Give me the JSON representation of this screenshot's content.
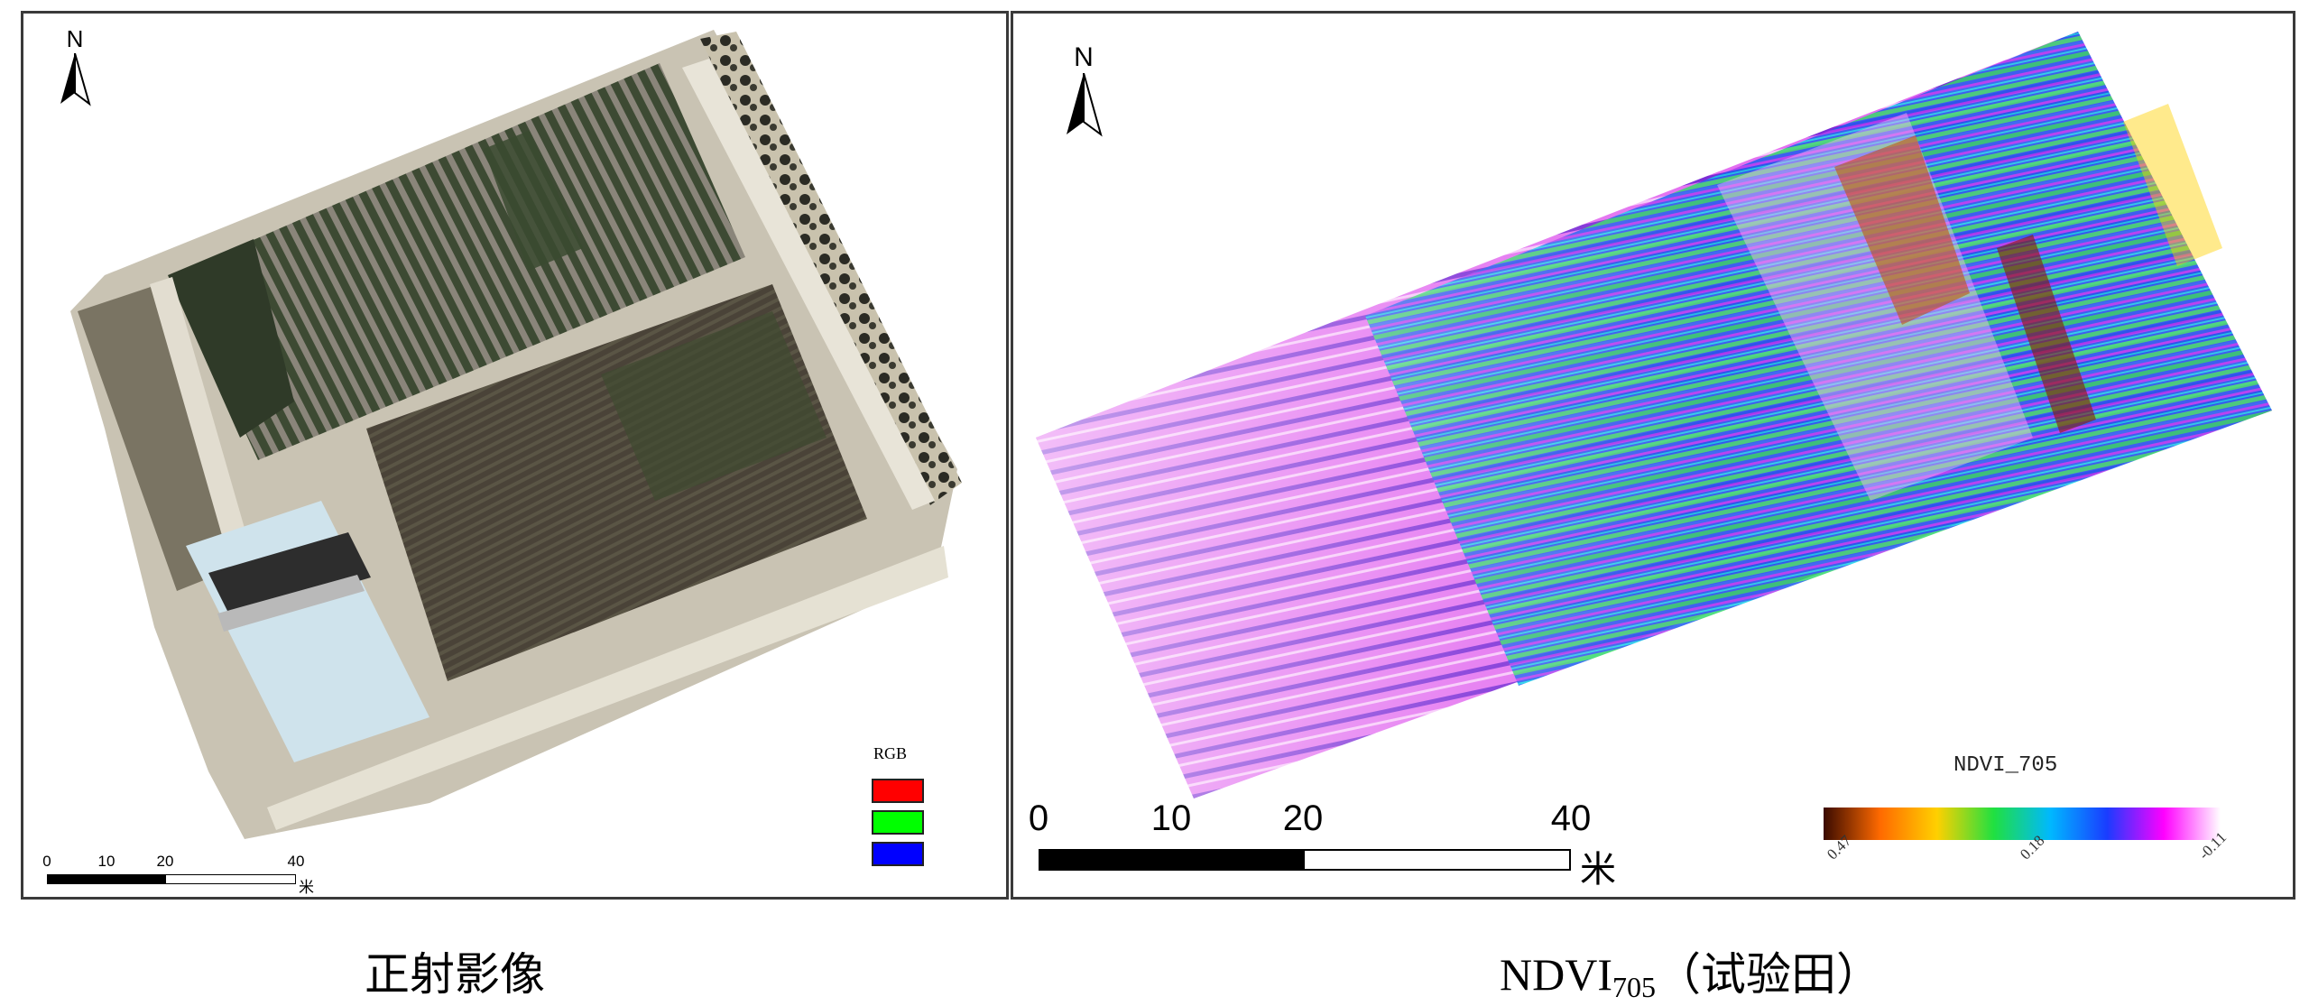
{
  "left_panel": {
    "north_label": "N",
    "scale": {
      "ticks": [
        "0",
        "10",
        "20",
        "40"
      ],
      "unit": "米"
    },
    "legend": {
      "title": "RGB",
      "swatches": [
        {
          "name": "red-band",
          "color": "#ff0000"
        },
        {
          "name": "green-band",
          "color": "#00ff00"
        },
        {
          "name": "blue-band",
          "color": "#0000ff"
        }
      ]
    }
  },
  "right_panel": {
    "north_label": "N",
    "scale": {
      "ticks": [
        "0",
        "10",
        "20",
        "40"
      ],
      "unit": "米"
    },
    "legend": {
      "title": "NDVI_705",
      "values": [
        "0.47",
        "0.18",
        "-0.11"
      ],
      "ramp_colors": [
        "#3a0a00",
        "#ff6a00",
        "#ffd000",
        "#20e040",
        "#00b8ff",
        "#1a3cff",
        "#ff00ff",
        "#ffffff"
      ]
    }
  },
  "captions": {
    "left": "正射影像",
    "right_main": "NDVI",
    "right_sub": "705",
    "right_paren": "（试验田）"
  }
}
